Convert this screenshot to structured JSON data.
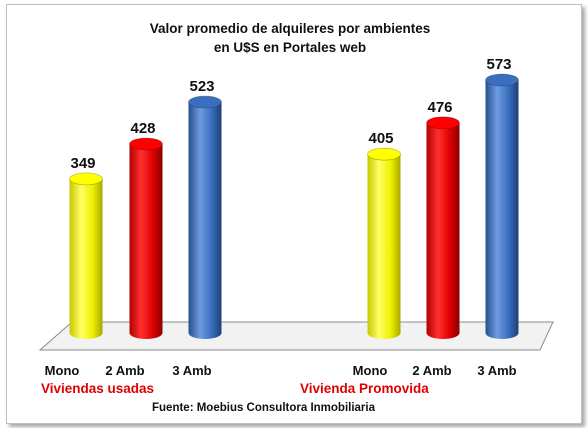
{
  "chart_data": {
    "type": "bar",
    "title_lines": [
      "Valor promedio de alquileres por ambientes",
      "en U$S en Portales web"
    ],
    "groups": [
      {
        "label": "Viviendas usadas",
        "bars": [
          {
            "category": "Mono",
            "value": 349,
            "color": "#ffff00"
          },
          {
            "category": "2 Amb",
            "value": 428,
            "color": "#ff0000"
          },
          {
            "category": "3 Amb",
            "value": 523,
            "color": "#3a6fbf"
          }
        ]
      },
      {
        "label": "Vivienda Promovida",
        "bars": [
          {
            "category": "Mono",
            "value": 405,
            "color": "#ffff00"
          },
          {
            "category": "2 Amb",
            "value": 476,
            "color": "#ff0000"
          },
          {
            "category": "3 Amb",
            "value": 573,
            "color": "#3a6fbf"
          }
        ]
      }
    ],
    "ylim": [
      0,
      600
    ],
    "grid": false,
    "source": "Fuente: Moebius Consultora Inmobiliaria"
  }
}
